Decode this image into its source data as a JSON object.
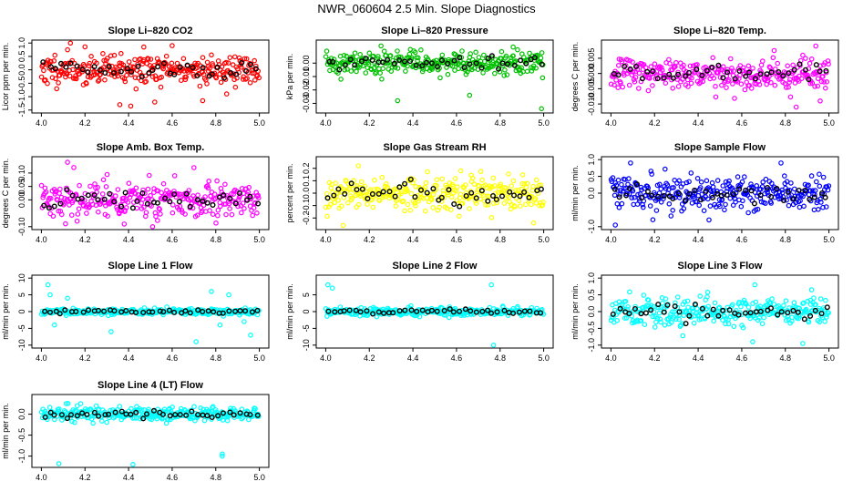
{
  "title": "NWR_060604  2.5 Min. Slope Diagnostics",
  "chart_data": [
    {
      "type": "scatter",
      "title": "Slope Li–820 CO2",
      "ylabel": "Licor ppm per min.",
      "xlim": [
        4.0,
        5.0
      ],
      "ylim": [
        -1.5,
        1.0
      ],
      "yticks": [
        "-1.5",
        "-1.0",
        "-0.5",
        "0.0",
        "0.5",
        "1.0"
      ],
      "xticks": [
        "4.0",
        "4.2",
        "4.4",
        "4.6",
        "4.8",
        "5.0"
      ],
      "color": "#ff0000",
      "spread": 0.28,
      "outliers": [
        [
          4.12,
          0.75
        ],
        [
          4.36,
          -1.3
        ],
        [
          4.41,
          -1.35
        ],
        [
          4.47,
          0.85
        ],
        [
          4.52,
          -1.2
        ],
        [
          4.74,
          -1.15
        ],
        [
          4.85,
          -0.9
        ],
        [
          4.6,
          0.9
        ]
      ],
      "seed": 11
    },
    {
      "type": "scatter",
      "title": "Slope Li–820 Pressure",
      "ylabel": "kPa per min.",
      "xlim": [
        4.0,
        5.0
      ],
      "ylim": [
        -0.035,
        0.015
      ],
      "yticks": [
        "-0.03",
        "-0.02",
        "-0.01",
        "0.00"
      ],
      "xticks": [
        "4.0",
        "4.2",
        "4.4",
        "4.6",
        "4.8",
        "5.0"
      ],
      "color": "#00c000",
      "spread": 0.004,
      "outliers": [
        [
          4.07,
          -0.012
        ],
        [
          4.33,
          -0.028
        ],
        [
          4.66,
          -0.024
        ],
        [
          4.86,
          0.012
        ],
        [
          4.99,
          -0.034
        ],
        [
          4.88,
          0.01
        ]
      ],
      "seed": 22
    },
    {
      "type": "scatter",
      "title": "Slope Li–820 Temp.",
      "ylabel": "degrees C per min.",
      "xlim": [
        4.0,
        5.0
      ],
      "ylim": [
        -0.012,
        0.01
      ],
      "yticks": [
        "-0.010",
        "-0.005",
        "0.000",
        "0.005"
      ],
      "xticks": [
        "4.0",
        "4.2",
        "4.4",
        "4.6",
        "4.8",
        "5.0"
      ],
      "color": "#ff00ff",
      "spread": 0.0025,
      "outliers": [
        [
          4.85,
          -0.011
        ],
        [
          4.96,
          -0.009
        ],
        [
          4.94,
          0.009
        ],
        [
          4.88,
          0.006
        ],
        [
          4.63,
          -0.004
        ]
      ],
      "seed": 33
    },
    {
      "type": "scatter",
      "title": "Slope Amb. Box Temp.",
      "ylabel": "degrees C per min.",
      "xlim": [
        4.0,
        5.0
      ],
      "ylim": [
        -0.1,
        0.15
      ],
      "yticks": [
        "-0.10",
        "0.00",
        "0.05",
        "0.10"
      ],
      "xticks": [
        "4.0",
        "4.2",
        "4.4",
        "4.6",
        "4.8",
        "5.0"
      ],
      "color": "#ff00ff",
      "spread": 0.035,
      "outliers": [
        [
          4.12,
          0.14
        ],
        [
          4.38,
          -0.09
        ],
        [
          4.7,
          0.12
        ]
      ],
      "seed": 44
    },
    {
      "type": "scatter",
      "title": "Slope Gas Stream RH",
      "ylabel": "percent per min.",
      "xlim": [
        4.0,
        5.0
      ],
      "ylim": [
        -0.27,
        0.27
      ],
      "yticks": [
        "-0.2",
        "-0.1",
        "0.0",
        "0.1",
        "0.2"
      ],
      "xticks": [
        "4.0",
        "4.2",
        "4.4",
        "4.6",
        "4.8",
        "5.0"
      ],
      "color": "#ffff00",
      "spread": 0.07,
      "outliers": [
        [
          4.08,
          -0.26
        ],
        [
          4.15,
          0.22
        ],
        [
          4.62,
          0.18
        ]
      ],
      "seed": 55
    },
    {
      "type": "scatter",
      "title": "Slope Sample Flow",
      "ylabel": "ml/min per min.",
      "xlim": [
        4.0,
        5.0
      ],
      "ylim": [
        -1.0,
        1.0
      ],
      "yticks": [
        "-1.0",
        "0.0",
        "0.5",
        "1.0"
      ],
      "xticks": [
        "4.0",
        "4.2",
        "4.4",
        "4.6",
        "4.8",
        "5.0"
      ],
      "color": "#0000ff",
      "spread": 0.25,
      "outliers": [
        [
          4.02,
          -0.95
        ],
        [
          4.09,
          0.9
        ],
        [
          4.78,
          0.9
        ],
        [
          4.45,
          -0.8
        ]
      ],
      "seed": 66
    },
    {
      "type": "scatter",
      "title": "Slope Line 1 Flow",
      "ylabel": "ml/min per min.",
      "xlim": [
        4.0,
        5.0
      ],
      "ylim": [
        -10,
        10
      ],
      "yticks": [
        "-10",
        "-5",
        "0",
        "5",
        "10"
      ],
      "xticks": [
        "4.0",
        "4.2",
        "4.4",
        "4.6",
        "4.8",
        "5.0"
      ],
      "color": "#00ffff",
      "spread": 0.5,
      "outliers": [
        [
          4.03,
          8
        ],
        [
          4.06,
          -4
        ],
        [
          4.12,
          4
        ],
        [
          4.32,
          -6
        ],
        [
          4.71,
          -9
        ],
        [
          4.78,
          6
        ],
        [
          4.82,
          -4
        ],
        [
          4.86,
          5
        ],
        [
          4.93,
          -3
        ],
        [
          4.04,
          5
        ],
        [
          4.96,
          -7
        ]
      ],
      "seed": 77
    },
    {
      "type": "scatter",
      "title": "Slope Line 2 Flow",
      "ylabel": "ml/min per min.",
      "xlim": [
        4.0,
        5.0
      ],
      "ylim": [
        -10,
        10
      ],
      "yticks": [
        "-10",
        "-5",
        "0",
        "5"
      ],
      "xticks": [
        "4.0",
        "4.2",
        "4.4",
        "4.6",
        "4.8",
        "5.0"
      ],
      "color": "#00ffff",
      "spread": 0.6,
      "outliers": [
        [
          4.01,
          8
        ],
        [
          4.03,
          7
        ],
        [
          4.77,
          -10
        ],
        [
          4.76,
          8
        ]
      ],
      "seed": 88
    },
    {
      "type": "scatter",
      "title": "Slope Line 3 Flow",
      "ylabel": "ml/min per min.",
      "xlim": [
        4.0,
        5.0
      ],
      "ylim": [
        -1.0,
        1.0
      ],
      "yticks": [
        "-1.0",
        "-0.5",
        "0.0",
        "0.5",
        "1.0"
      ],
      "xticks": [
        "4.0",
        "4.2",
        "4.4",
        "4.6",
        "4.8",
        "5.0"
      ],
      "color": "#00ffff",
      "spread": 0.2,
      "outliers": [
        [
          4.33,
          -0.72
        ],
        [
          4.65,
          -0.9
        ],
        [
          4.88,
          -0.95
        ],
        [
          4.66,
          0.8
        ],
        [
          4.92,
          0.65
        ]
      ],
      "seed": 99
    },
    {
      "type": "scatter",
      "title": "Slope Line 4 (LT) Flow",
      "ylabel": "ml/min per min.",
      "xlim": [
        4.0,
        5.0
      ],
      "ylim": [
        -1.2,
        0.4
      ],
      "yticks": [
        "-1.0",
        "-0.5",
        "0.0"
      ],
      "xticks": [
        "4.0",
        "4.2",
        "4.4",
        "4.6",
        "4.8",
        "5.0"
      ],
      "color": "#00ffff",
      "spread": 0.08,
      "outliers": [
        [
          4.08,
          -1.18
        ],
        [
          4.42,
          -1.22
        ],
        [
          4.83,
          -1.0
        ],
        [
          4.83,
          -0.95
        ],
        [
          4.18,
          0.25
        ]
      ],
      "seed": 111
    }
  ]
}
